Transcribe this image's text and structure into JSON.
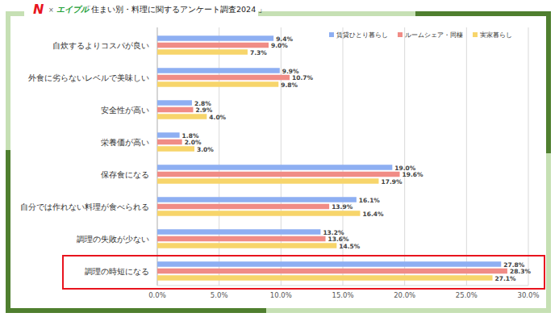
{
  "chart_data": {
    "type": "bar",
    "orientation": "horizontal",
    "title": "「住まい別・料理に関するアンケート調査2024 」",
    "annotations": [
      "N",
      "×",
      "エイブル"
    ],
    "categories": [
      "自炊するよりコスパが良い",
      "外食に劣らないレベルで美味しい",
      "安全性が高い",
      "栄養価が高い",
      "保存食になる",
      "自分では作れない料理が食べられる",
      "調理の失敗が少ない",
      "調理の時短になる"
    ],
    "series": [
      {
        "name": "賃貸ひとり暮らし",
        "color": "#8eaff2",
        "values": [
          9.4,
          9.9,
          2.8,
          1.8,
          19.0,
          16.1,
          13.2,
          27.8
        ],
        "value_labels": [
          "9.4%",
          "9.9%",
          "2.8%",
          "1.8%",
          "19.0%",
          "16.1%",
          "13.2%",
          "27.8%"
        ]
      },
      {
        "name": "ルームシェア・同棲",
        "color": "#f08c86",
        "values": [
          9.0,
          10.7,
          2.9,
          2.0,
          19.6,
          13.9,
          13.6,
          28.3
        ],
        "value_labels": [
          "9.0%",
          "10.7%",
          "2.9%",
          "2.0%",
          "19.6%",
          "13.9%",
          "13.6%",
          "28.3%"
        ]
      },
      {
        "name": "実家暮らし",
        "color": "#f7d56b",
        "values": [
          7.3,
          9.8,
          4.0,
          3.0,
          17.9,
          16.4,
          14.5,
          27.1
        ],
        "value_labels": [
          "7.3%",
          "9.8%",
          "4.0%",
          "3.0%",
          "17.9%",
          "16.4%",
          "14.5%",
          "27.1%"
        ]
      }
    ],
    "xlim": [
      0,
      30
    ],
    "xticks": [
      {
        "value": 0,
        "label": "0.0%"
      },
      {
        "value": 5,
        "label": "5.0%"
      },
      {
        "value": 10,
        "label": "10.0%"
      },
      {
        "value": 15,
        "label": "15.0%"
      },
      {
        "value": 20,
        "label": "20.0%"
      },
      {
        "value": 25,
        "label": "25.0%"
      },
      {
        "value": 30,
        "label": "30.0%"
      }
    ],
    "grid": true,
    "legend": "top-right",
    "data_labels": true
  }
}
